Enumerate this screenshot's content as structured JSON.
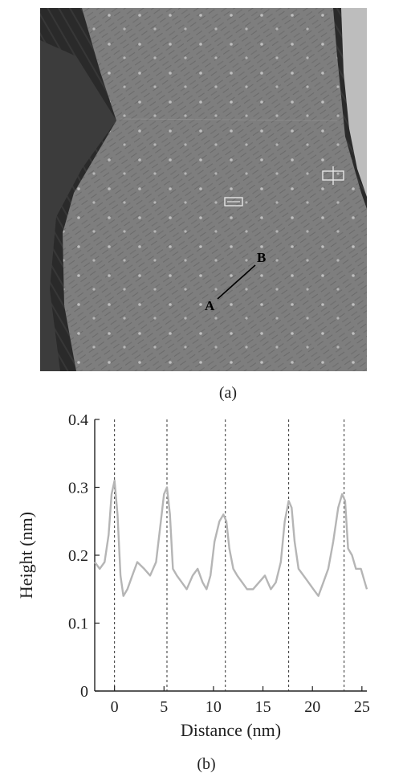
{
  "panel_a": {
    "label": "(a)",
    "markers": {
      "start": "A",
      "end": "B"
    },
    "colors": {
      "dark": "#2a2a2a",
      "terrace": "#7d7d7d",
      "bright": "#bdbdbd",
      "spots": "#cfcfcf"
    }
  },
  "panel_b": {
    "label": "(b)"
  },
  "chart_data": {
    "type": "line",
    "title": "",
    "xlabel": "Distance (nm)",
    "ylabel": "Height (nm)",
    "xlim": [
      -2,
      25.5
    ],
    "ylim": [
      0,
      0.4
    ],
    "xticks": [
      0,
      5,
      10,
      15,
      20,
      25
    ],
    "yticks": [
      0,
      0.1,
      0.2,
      0.3,
      0.4
    ],
    "xtick_labels": [
      "0",
      "5",
      "10",
      "15",
      "20",
      "25"
    ],
    "ytick_labels": [
      "0",
      "0.1",
      "0.2",
      "0.3",
      "0.4"
    ],
    "grid": false,
    "line_color": "#b5b5b5",
    "reference_lines_x": [
      0,
      5.3,
      11.2,
      17.6,
      23.2
    ],
    "series": [
      {
        "x": [
          -2.0,
          -1.5,
          -1.0,
          -0.6,
          -0.3,
          0.0,
          0.3,
          0.6,
          0.9,
          1.3,
          1.8,
          2.3,
          3.0,
          3.6,
          4.2,
          4.6,
          5.0,
          5.3,
          5.6,
          5.9,
          6.3,
          6.8,
          7.3,
          7.9,
          8.4,
          8.9,
          9.3,
          9.7,
          10.1,
          10.6,
          11.0,
          11.3,
          11.6,
          12.0,
          12.4,
          12.9,
          13.4,
          14.0,
          14.6,
          15.2,
          15.8,
          16.3,
          16.8,
          17.2,
          17.6,
          17.9,
          18.2,
          18.6,
          19.1,
          19.6,
          20.1,
          20.6,
          21.1,
          21.6,
          22.1,
          22.6,
          23.0,
          23.3,
          23.6,
          24.0,
          24.4,
          24.9,
          25.3,
          25.5
        ],
        "y": [
          0.19,
          0.18,
          0.19,
          0.23,
          0.29,
          0.31,
          0.26,
          0.17,
          0.14,
          0.15,
          0.17,
          0.19,
          0.18,
          0.17,
          0.19,
          0.24,
          0.29,
          0.3,
          0.26,
          0.18,
          0.17,
          0.16,
          0.15,
          0.17,
          0.18,
          0.16,
          0.15,
          0.17,
          0.22,
          0.25,
          0.26,
          0.25,
          0.21,
          0.18,
          0.17,
          0.16,
          0.15,
          0.15,
          0.16,
          0.17,
          0.15,
          0.16,
          0.19,
          0.25,
          0.28,
          0.27,
          0.22,
          0.18,
          0.17,
          0.16,
          0.15,
          0.14,
          0.16,
          0.18,
          0.22,
          0.27,
          0.29,
          0.28,
          0.21,
          0.2,
          0.18,
          0.18,
          0.16,
          0.15
        ]
      }
    ]
  }
}
